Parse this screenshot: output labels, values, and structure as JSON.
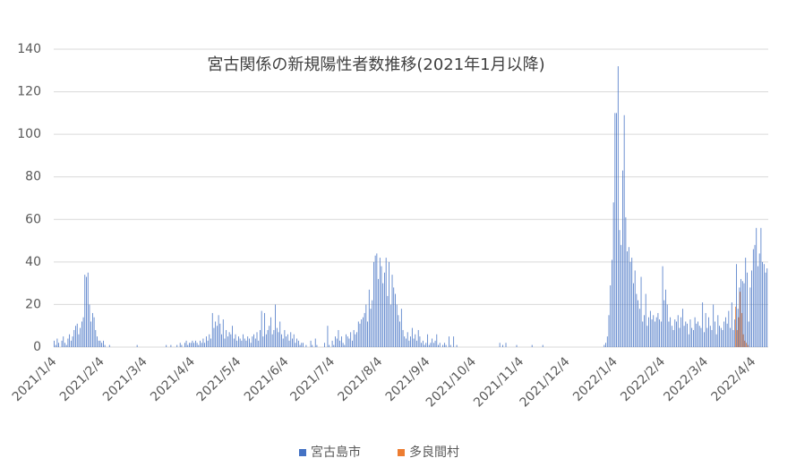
{
  "chart_data": {
    "type": "bar",
    "title": "宮古関係の新規陽性者数推移(2021年1月以降)",
    "ylim": [
      0,
      140
    ],
    "yticks": [
      0,
      20,
      40,
      60,
      80,
      100,
      120,
      140
    ],
    "grid": true,
    "legend": "bottom",
    "categories": [
      "2021/1/4",
      null,
      null,
      null,
      null,
      null,
      null,
      null,
      null,
      null,
      null,
      null,
      null,
      null,
      null,
      null,
      null,
      null,
      null,
      null,
      null,
      null,
      null,
      null,
      null,
      null,
      null,
      null,
      null,
      null,
      null,
      "2021/2/4",
      null,
      null,
      null,
      null,
      null,
      null,
      null,
      null,
      null,
      null,
      null,
      null,
      null,
      null,
      null,
      null,
      null,
      null,
      null,
      null,
      null,
      null,
      null,
      null,
      null,
      null,
      null,
      "2021/3/4",
      null,
      null,
      null,
      null,
      null,
      null,
      null,
      null,
      null,
      null,
      null,
      null,
      null,
      null,
      null,
      null,
      null,
      null,
      null,
      null,
      null,
      null,
      null,
      null,
      null,
      null,
      null,
      null,
      null,
      null,
      "2021/4/4",
      null,
      null,
      null,
      null,
      null,
      null,
      null,
      null,
      null,
      null,
      null,
      null,
      null,
      null,
      null,
      null,
      null,
      null,
      null,
      null,
      null,
      null,
      null,
      null,
      null,
      null,
      null,
      null,
      null,
      "2021/5/4",
      null,
      null,
      null,
      null,
      null,
      null,
      null,
      null,
      null,
      null,
      null,
      null,
      null,
      null,
      null,
      null,
      null,
      null,
      null,
      null,
      null,
      null,
      null,
      null,
      null,
      null,
      null,
      null,
      null,
      null,
      "2021/6/4",
      null,
      null,
      null,
      null,
      null,
      null,
      null,
      null,
      null,
      null,
      null,
      null,
      null,
      null,
      null,
      null,
      null,
      null,
      null,
      null,
      null,
      null,
      null,
      null,
      null,
      null,
      null,
      null,
      null,
      "2021/7/4",
      null,
      null,
      null,
      null,
      null,
      null,
      null,
      null,
      null,
      null,
      null,
      null,
      null,
      null,
      null,
      null,
      null,
      null,
      null,
      null,
      null,
      null,
      null,
      null,
      null,
      null,
      null,
      null,
      null,
      null,
      "2021/8/4",
      null,
      null,
      null,
      null,
      null,
      null,
      null,
      null,
      null,
      null,
      null,
      null,
      null,
      null,
      null,
      null,
      null,
      null,
      null,
      null,
      null,
      null,
      null,
      null,
      null,
      null,
      null,
      null,
      null,
      null,
      "2021/9/4",
      null,
      null,
      null,
      null,
      null,
      null,
      null,
      null,
      null,
      null,
      null,
      null,
      null,
      null,
      null,
      null,
      null,
      null,
      null,
      null,
      null,
      null,
      null,
      null,
      null,
      null,
      null,
      null,
      null,
      "2021/10/4",
      null,
      null,
      null,
      null,
      null,
      null,
      null,
      null,
      null,
      null,
      null,
      null,
      null,
      null,
      null,
      null,
      null,
      null,
      null,
      null,
      null,
      null,
      null,
      null,
      null,
      null,
      null,
      null,
      null,
      null,
      "2021/11/4",
      null,
      null,
      null,
      null,
      null,
      null,
      null,
      null,
      null,
      null,
      null,
      null,
      null,
      null,
      null,
      null,
      null,
      null,
      null,
      null,
      null,
      null,
      null,
      null,
      null,
      null,
      null,
      null,
      null,
      "2021/12/4",
      null,
      null,
      null,
      null,
      null,
      null,
      null,
      null,
      null,
      null,
      null,
      null,
      null,
      null,
      null,
      null,
      null,
      null,
      null,
      null,
      null,
      null,
      null,
      null,
      null,
      null,
      null,
      null,
      null,
      null,
      "2022/1/4",
      null,
      null,
      null,
      null,
      null,
      null,
      null,
      null,
      null,
      null,
      null,
      null,
      null,
      null,
      null,
      null,
      null,
      null,
      null,
      null,
      null,
      null,
      null,
      null,
      null,
      null,
      null,
      null,
      null,
      null,
      "2022/2/4",
      null,
      null,
      null,
      null,
      null,
      null,
      null,
      null,
      null,
      null,
      null,
      null,
      null,
      null,
      null,
      null,
      null,
      null,
      null,
      null,
      null,
      null,
      null,
      null,
      null,
      null,
      null,
      "2022/3/4",
      null,
      null,
      null,
      null,
      null,
      null,
      null,
      null,
      null,
      null,
      null,
      null,
      null,
      null,
      null,
      null,
      null,
      null,
      null,
      null,
      null,
      null,
      null,
      null,
      null,
      null,
      null,
      null,
      null,
      null,
      "2022/4/4",
      null,
      null,
      null,
      null,
      null,
      null,
      null,
      null,
      null
    ],
    "series": [
      {
        "name": "宮古島市",
        "color": "#4472c4",
        "values": [
          3,
          1,
          4,
          2,
          0,
          3,
          5,
          2,
          1,
          4,
          6,
          3,
          5,
          8,
          10,
          11,
          6,
          9,
          12,
          14,
          34,
          33,
          35,
          20,
          12,
          16,
          14,
          8,
          5,
          3,
          3,
          2,
          3,
          1,
          0,
          0,
          1,
          0,
          0,
          0,
          0,
          0,
          0,
          0,
          0,
          0,
          0,
          0,
          0,
          0,
          0,
          0,
          0,
          0,
          1,
          0,
          0,
          0,
          0,
          0,
          0,
          0,
          0,
          0,
          0,
          0,
          0,
          0,
          0,
          0,
          0,
          0,
          0,
          1,
          0,
          0,
          1,
          0,
          0,
          0,
          1,
          0,
          2,
          1,
          0,
          2,
          3,
          1,
          2,
          2,
          3,
          2,
          3,
          2,
          1,
          3,
          2,
          4,
          2,
          5,
          3,
          6,
          4,
          16,
          9,
          12,
          10,
          15,
          11,
          6,
          13,
          4,
          8,
          5,
          7,
          6,
          10,
          4,
          6,
          3,
          5,
          4,
          3,
          6,
          4,
          3,
          5,
          4,
          2,
          5,
          6,
          4,
          7,
          3,
          8,
          17,
          5,
          16,
          6,
          8,
          10,
          14,
          6,
          8,
          20,
          9,
          7,
          12,
          6,
          4,
          8,
          5,
          6,
          3,
          7,
          4,
          6,
          2,
          4,
          3,
          1,
          2,
          2,
          0,
          1,
          0,
          0,
          3,
          1,
          0,
          4,
          1,
          0,
          0,
          0,
          0,
          2,
          0,
          10,
          1,
          0,
          3,
          1,
          5,
          4,
          8,
          3,
          5,
          2,
          1,
          6,
          5,
          4,
          7,
          3,
          8,
          6,
          7,
          12,
          11,
          13,
          14,
          16,
          20,
          12,
          27,
          18,
          22,
          40,
          43,
          44,
          32,
          42,
          38,
          30,
          35,
          42,
          24,
          40,
          20,
          34,
          28,
          25,
          20,
          15,
          12,
          18,
          8,
          5,
          4,
          7,
          3,
          5,
          9,
          4,
          6,
          3,
          8,
          5,
          2,
          3,
          1,
          2,
          6,
          1,
          2,
          4,
          2,
          3,
          6,
          1,
          2,
          0,
          1,
          2,
          1,
          0,
          5,
          1,
          0,
          5,
          0,
          1,
          0,
          0,
          0,
          0,
          0,
          0,
          0,
          0,
          0,
          0,
          0,
          0,
          0,
          0,
          0,
          0,
          0,
          0,
          0,
          0,
          0,
          0,
          0,
          0,
          0,
          0,
          0,
          2,
          0,
          1,
          0,
          2,
          0,
          0,
          0,
          0,
          0,
          0,
          1,
          0,
          0,
          0,
          0,
          0,
          0,
          0,
          0,
          0,
          1,
          0,
          0,
          0,
          0,
          0,
          0,
          1,
          0,
          0,
          0,
          0,
          0,
          0,
          0,
          0,
          0,
          0,
          0,
          0,
          0,
          0,
          0,
          0,
          0,
          0,
          0,
          0,
          0,
          0,
          0,
          0,
          0,
          0,
          0,
          0,
          0,
          0,
          0,
          0,
          0,
          0,
          0,
          0,
          0,
          0,
          0,
          1,
          2,
          5,
          15,
          29,
          41,
          68,
          110,
          110,
          132,
          55,
          48,
          83,
          109,
          61,
          45,
          47,
          40,
          42,
          30,
          36,
          25,
          22,
          18,
          33,
          12,
          15,
          25,
          10,
          14,
          17,
          13,
          15,
          12,
          14,
          16,
          13,
          12,
          38,
          22,
          27,
          20,
          12,
          14,
          10,
          8,
          13,
          12,
          15,
          9,
          14,
          18,
          10,
          12,
          11,
          6,
          13,
          9,
          8,
          14,
          11,
          12,
          10,
          9,
          21,
          7,
          16,
          9,
          14,
          10,
          8,
          20,
          12,
          6,
          15,
          10,
          9,
          8,
          12,
          14,
          11,
          17,
          9,
          21,
          8,
          13,
          39,
          18,
          28,
          32,
          31,
          30,
          42,
          35,
          12,
          28,
          36,
          46,
          48,
          56,
          38,
          44,
          56,
          40,
          39,
          35,
          37
        ]
      },
      {
        "name": "多良間村",
        "color": "#ed7d31",
        "values": [
          0,
          0,
          0,
          0,
          0,
          0,
          0,
          0,
          0,
          0,
          0,
          0,
          0,
          0,
          0,
          0,
          0,
          0,
          0,
          0,
          0,
          0,
          0,
          0,
          0,
          0,
          0,
          0,
          0,
          0,
          0,
          0,
          0,
          0,
          0,
          0,
          0,
          0,
          0,
          0,
          0,
          0,
          0,
          0,
          0,
          0,
          0,
          0,
          0,
          0,
          0,
          0,
          0,
          0,
          0,
          0,
          0,
          0,
          0,
          0,
          0,
          0,
          0,
          0,
          0,
          0,
          0,
          0,
          0,
          0,
          0,
          0,
          0,
          0,
          0,
          0,
          0,
          0,
          0,
          0,
          0,
          0,
          0,
          0,
          0,
          0,
          0,
          0,
          0,
          0,
          0,
          0,
          0,
          0,
          0,
          0,
          0,
          0,
          0,
          0,
          0,
          0,
          0,
          0,
          0,
          0,
          0,
          0,
          0,
          0,
          0,
          0,
          0,
          0,
          0,
          0,
          0,
          0,
          0,
          0,
          0,
          0,
          0,
          0,
          0,
          0,
          0,
          0,
          0,
          0,
          0,
          0,
          0,
          0,
          0,
          0,
          0,
          0,
          0,
          0,
          0,
          0,
          0,
          0,
          0,
          0,
          0,
          0,
          0,
          0,
          0,
          0,
          0,
          0,
          0,
          0,
          0,
          0,
          0,
          0,
          0,
          0,
          0,
          0,
          0,
          0,
          0,
          0,
          0,
          0,
          0,
          0,
          0,
          0,
          0,
          0,
          0,
          0,
          0,
          0,
          0,
          0,
          0,
          0,
          0,
          0,
          0,
          0,
          0,
          0,
          0,
          0,
          0,
          0,
          0,
          0,
          0,
          0,
          0,
          0,
          0,
          0,
          0,
          0,
          0,
          0,
          0,
          0,
          0,
          0,
          0,
          0,
          0,
          0,
          0,
          0,
          0,
          0,
          0,
          0,
          0,
          0,
          0,
          0,
          0,
          0,
          0,
          0,
          0,
          0,
          0,
          0,
          0,
          0,
          0,
          0,
          0,
          0,
          0,
          0,
          0,
          0,
          0,
          0,
          0,
          0,
          0,
          0,
          0,
          0,
          0,
          0,
          0,
          0,
          0,
          0,
          0,
          0,
          0,
          0,
          0,
          0,
          0,
          0,
          0,
          0,
          0,
          0,
          0,
          0,
          0,
          0,
          0,
          0,
          0,
          0,
          0,
          0,
          0,
          0,
          0,
          0,
          0,
          0,
          0,
          0,
          0,
          0,
          0,
          0,
          0,
          0,
          0,
          0,
          0,
          0,
          0,
          0,
          0,
          0,
          0,
          0,
          0,
          0,
          0,
          0,
          0,
          0,
          0,
          0,
          0,
          0,
          0,
          0,
          0,
          0,
          0,
          0,
          0,
          0,
          0,
          0,
          0,
          0,
          0,
          0,
          0,
          0,
          0,
          0,
          0,
          0,
          0,
          0,
          0,
          0,
          0,
          0,
          0,
          0,
          0,
          0,
          0,
          0,
          0,
          0,
          0,
          0,
          0,
          0,
          0,
          0,
          0,
          0,
          0,
          0,
          0,
          0,
          0,
          0,
          0,
          0,
          0,
          0,
          0,
          0,
          0,
          0,
          0,
          0,
          0,
          0,
          0,
          0,
          0,
          0,
          0,
          0,
          0,
          0,
          0,
          0,
          0,
          0,
          0,
          0,
          0,
          0,
          0,
          0,
          0,
          0,
          0,
          0,
          0,
          0,
          0,
          0,
          0,
          0,
          0,
          0,
          0,
          0,
          0,
          0,
          0,
          0,
          0,
          0,
          0,
          0,
          0,
          0,
          0,
          0,
          0,
          0,
          0,
          0,
          0,
          0,
          0,
          0,
          0,
          0,
          0,
          0,
          0,
          0,
          0,
          0,
          0,
          0,
          0,
          0,
          0,
          0,
          0,
          0,
          0,
          0,
          0,
          19,
          8,
          14,
          26,
          16,
          6,
          3,
          2,
          1,
          0,
          0,
          0,
          0,
          0,
          0,
          0,
          0,
          0,
          0,
          0,
          0,
          0
        ]
      }
    ]
  }
}
